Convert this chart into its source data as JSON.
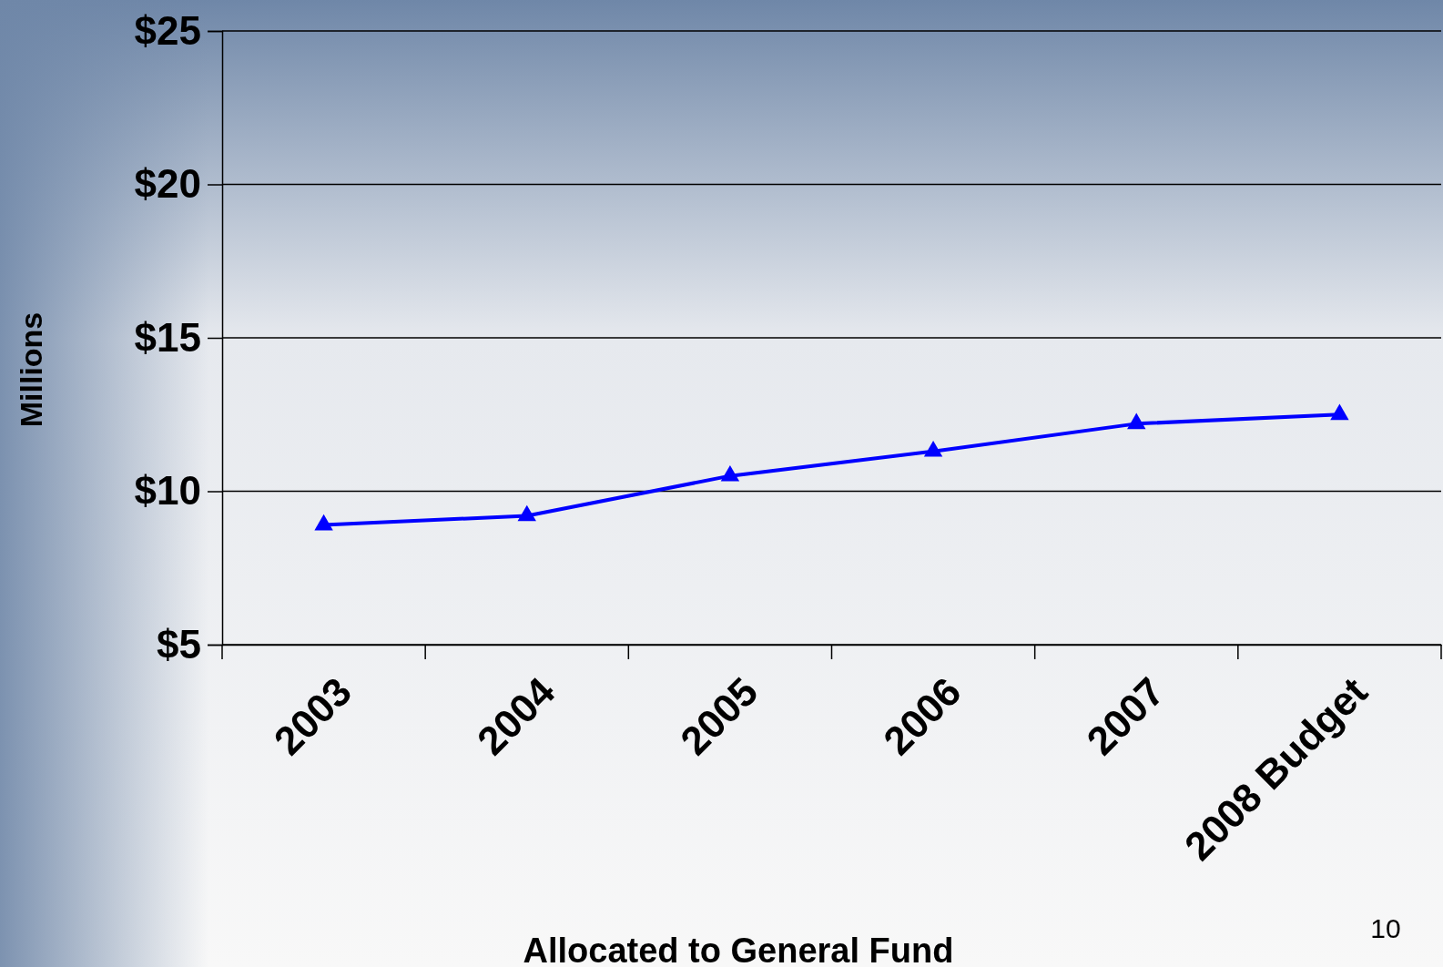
{
  "chart_data": {
    "type": "line",
    "xlabel": "Allocated to General Fund",
    "ylabel": "Millions",
    "categories": [
      "2003",
      "2004",
      "2005",
      "2006",
      "2007",
      "2008 Budget"
    ],
    "series": [
      {
        "color": "#0000ff",
        "values": [
          8.9,
          9.2,
          10.5,
          11.3,
          12.2,
          12.5
        ]
      }
    ],
    "ylim": [
      5,
      25
    ],
    "yticks": [
      {
        "value": 5,
        "label": "$5"
      },
      {
        "value": 10,
        "label": "$10"
      },
      {
        "value": 15,
        "label": "$15"
      },
      {
        "value": 20,
        "label": "$20"
      },
      {
        "value": 25,
        "label": "$25"
      }
    ],
    "grid": "y",
    "marker": "triangle",
    "line_style": "solid",
    "annotations": [
      "10"
    ]
  }
}
